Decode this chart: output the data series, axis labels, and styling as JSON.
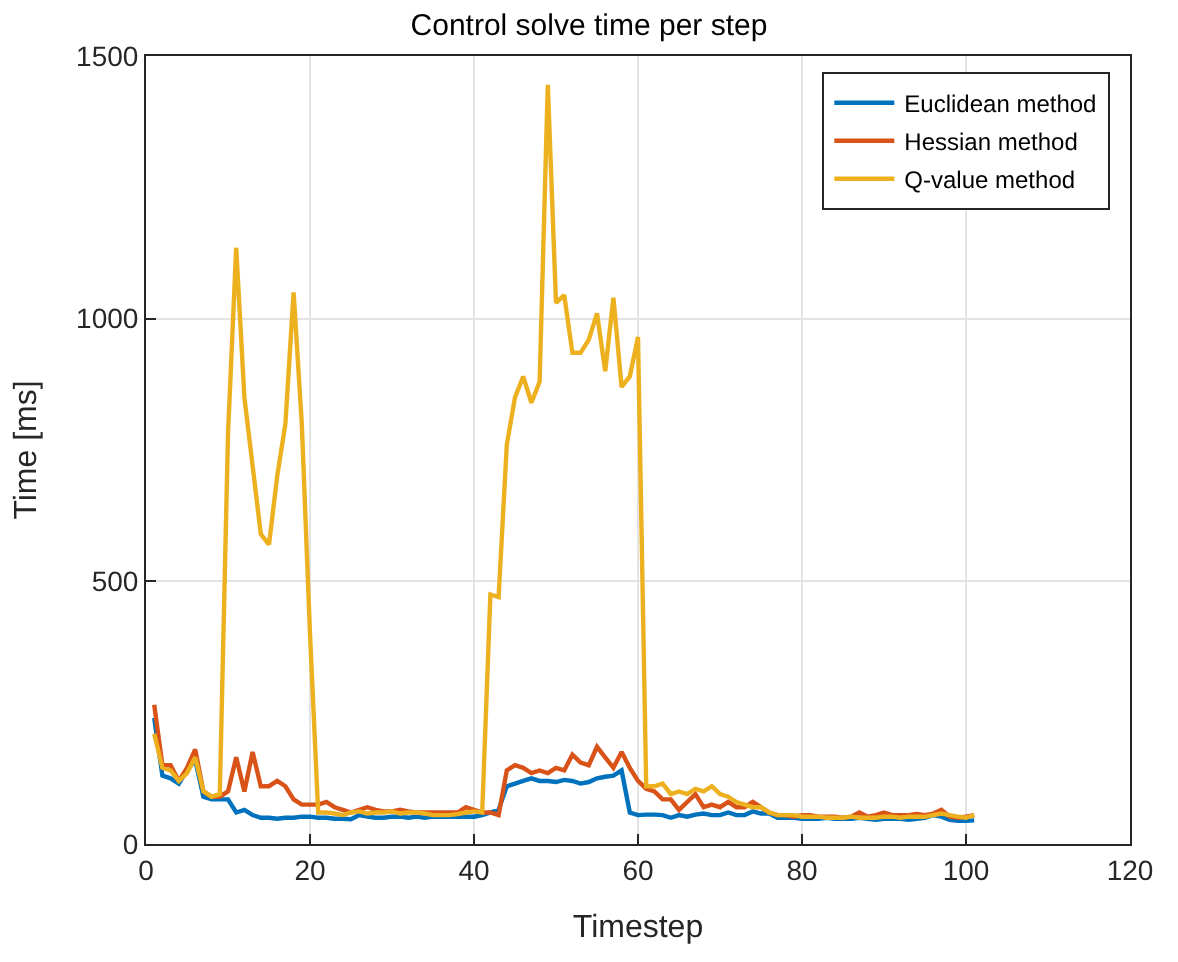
{
  "chart_data": {
    "type": "line",
    "title": "Control solve time per step",
    "xlabel": "Timestep",
    "ylabel": "Time [ms]",
    "x": [
      1,
      2,
      3,
      4,
      5,
      6,
      7,
      8,
      9,
      10,
      11,
      12,
      13,
      14,
      15,
      16,
      17,
      18,
      19,
      20,
      21,
      22,
      23,
      24,
      25,
      26,
      27,
      28,
      29,
      30,
      31,
      32,
      33,
      34,
      35,
      36,
      37,
      38,
      39,
      40,
      41,
      42,
      43,
      44,
      45,
      46,
      47,
      48,
      49,
      50,
      51,
      52,
      53,
      54,
      55,
      56,
      57,
      58,
      59,
      60,
      61,
      62,
      63,
      64,
      65,
      66,
      67,
      68,
      69,
      70,
      71,
      72,
      73,
      74,
      75,
      76,
      77,
      78,
      79,
      80,
      81,
      82,
      83,
      84,
      85,
      86,
      87,
      88,
      89,
      90,
      91,
      92,
      93,
      94,
      95,
      96,
      97,
      98,
      99,
      100,
      101
    ],
    "series": [
      {
        "name": "Euclidean method",
        "color": "#0072bd",
        "values": [
          240,
          130,
          125,
          115,
          140,
          160,
          90,
          85,
          85,
          85,
          60,
          65,
          55,
          50,
          50,
          48,
          50,
          50,
          52,
          52,
          50,
          50,
          48,
          48,
          47,
          55,
          52,
          50,
          50,
          52,
          52,
          50,
          52,
          50,
          52,
          52,
          52,
          52,
          52,
          52,
          55,
          60,
          65,
          110,
          115,
          120,
          125,
          120,
          120,
          118,
          122,
          120,
          115,
          118,
          125,
          128,
          130,
          140,
          60,
          55,
          56,
          56,
          55,
          50,
          55,
          52,
          56,
          58,
          55,
          55,
          60,
          55,
          55,
          62,
          58,
          58,
          50,
          50,
          50,
          48,
          48,
          48,
          50,
          48,
          48,
          48,
          50,
          48,
          46,
          48,
          48,
          48,
          46,
          48,
          50,
          55,
          52,
          46,
          44,
          44,
          45
        ]
      },
      {
        "name": "Hessian method",
        "color": "#d95319",
        "values": [
          265,
          150,
          150,
          120,
          145,
          180,
          100,
          90,
          90,
          100,
          165,
          100,
          175,
          110,
          110,
          120,
          110,
          85,
          75,
          75,
          75,
          80,
          70,
          65,
          60,
          65,
          70,
          65,
          62,
          62,
          65,
          62,
          60,
          60,
          60,
          60,
          60,
          60,
          70,
          65,
          60,
          60,
          55,
          140,
          150,
          145,
          135,
          140,
          135,
          145,
          140,
          170,
          155,
          150,
          185,
          165,
          145,
          175,
          145,
          120,
          105,
          100,
          85,
          85,
          65,
          80,
          95,
          70,
          75,
          70,
          80,
          70,
          70,
          80,
          70,
          60,
          55,
          55,
          52,
          55,
          55,
          52,
          52,
          52,
          50,
          52,
          60,
          52,
          55,
          60,
          55,
          55,
          55,
          57,
          55,
          58,
          65,
          52,
          50,
          52,
          55
        ]
      },
      {
        "name": "Q-value method",
        "color": "#edb120",
        "values": [
          210,
          145,
          140,
          120,
          135,
          165,
          100,
          90,
          95,
          780,
          1135,
          850,
          720,
          590,
          570,
          700,
          800,
          1050,
          800,
          400,
          60,
          60,
          58,
          55,
          60,
          62,
          58,
          60,
          60,
          62,
          58,
          60,
          60,
          58,
          55,
          55,
          55,
          57,
          60,
          62,
          60,
          475,
          470,
          760,
          850,
          890,
          840,
          880,
          1445,
          1030,
          1045,
          935,
          935,
          960,
          1010,
          900,
          1040,
          870,
          890,
          965,
          110,
          110,
          115,
          95,
          100,
          95,
          105,
          100,
          110,
          95,
          90,
          80,
          75,
          70,
          70,
          60,
          55,
          55,
          55,
          52,
          52,
          52,
          50,
          50,
          50,
          52,
          50,
          50,
          50,
          52,
          52,
          50,
          52,
          52,
          52,
          55,
          58,
          55,
          52,
          50,
          55
        ]
      }
    ],
    "xlim": [
      0,
      120
    ],
    "xticks": [
      0,
      20,
      40,
      60,
      80,
      100,
      120
    ],
    "ylim": [
      0,
      1500
    ],
    "yticks": [
      0,
      500,
      1000,
      1500
    ],
    "grid": true,
    "legend": "top right",
    "marker": "none",
    "line_style": "solid"
  }
}
